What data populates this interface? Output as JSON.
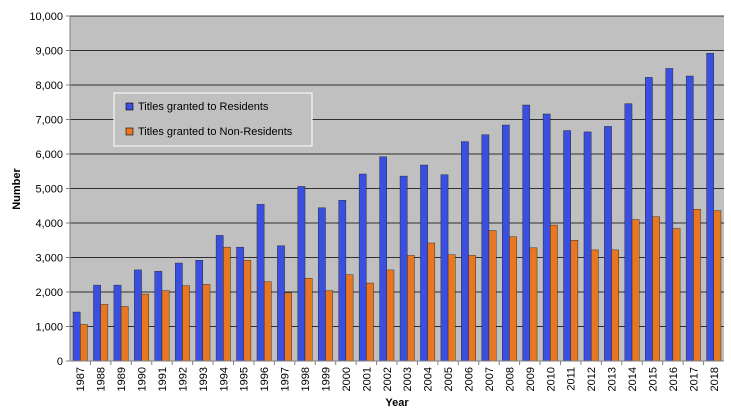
{
  "chart_data": {
    "type": "bar",
    "title": "",
    "xlabel": "Year",
    "ylabel": "Number",
    "ylim": [
      0,
      10000
    ],
    "y_ticks": [
      "0",
      "1,000",
      "2,000",
      "3,000",
      "4,000",
      "5,000",
      "6,000",
      "7,000",
      "8,000",
      "9,000",
      "10,000"
    ],
    "y_tick_values": [
      0,
      1000,
      2000,
      3000,
      4000,
      5000,
      6000,
      7000,
      8000,
      9000,
      10000
    ],
    "grid": true,
    "legend_position": "upper-left",
    "plot_background": "#c0c0c0",
    "categories": [
      "1987",
      "1988",
      "1989",
      "1990",
      "1991",
      "1992",
      "1993",
      "1994",
      "1995",
      "1996",
      "1997",
      "1998",
      "1999",
      "2000",
      "2001",
      "2002",
      "2003",
      "2004",
      "2005",
      "2006",
      "2007",
      "2008",
      "2009",
      "2010",
      "2011",
      "2012",
      "2013",
      "2014",
      "2015",
      "2016",
      "2017",
      "2018"
    ],
    "series": [
      {
        "name": "Titles granted to Residents",
        "color": "#3a4fe0",
        "values": [
          1420,
          2200,
          2200,
          2640,
          2600,
          2840,
          2920,
          3640,
          3300,
          4540,
          3340,
          5060,
          4440,
          4660,
          5420,
          5920,
          5360,
          5680,
          5400,
          6360,
          6560,
          6840,
          7420,
          7160,
          6680,
          6640,
          6800,
          7460,
          8220,
          8480,
          8260,
          8920
        ]
      },
      {
        "name": "Titles granted to Non-Residents",
        "color": "#e87722",
        "values": [
          1060,
          1640,
          1580,
          1940,
          2040,
          2180,
          2220,
          3300,
          2920,
          2300,
          1980,
          2400,
          2040,
          2500,
          2260,
          2640,
          3060,
          3420,
          3080,
          3060,
          3780,
          3600,
          3280,
          3940,
          3500,
          3220,
          3220,
          4100,
          4180,
          3840,
          4400,
          4360
        ]
      }
    ]
  }
}
